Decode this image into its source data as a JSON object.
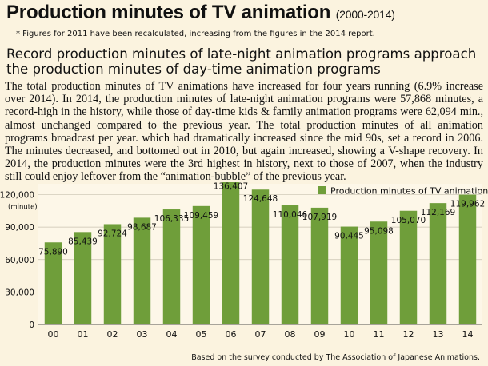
{
  "header": {
    "title": "Production minutes of TV animation",
    "title_years": "(2000-2014)",
    "note": "* Figures for 2011 have been recalculated, increasing from the figures in the 2014 report."
  },
  "article": {
    "subtitle": "Record production minutes of late-night animation programs approach the production minutes of day-time animation programs",
    "body": "The total production minutes of TV animations have increased for four years running (6.9% increase over 2014). In 2014, the production minutes of late-night animation programs were 57,868 minutes, a record-high in the history, while those of day-time kids & family animation programs were 62,094 min., almost unchanged compared to the previous year.  The total production minutes of all animation programs broadcast per year. which had dramatically increased since the mid 90s, set a record in 2006.  The minutes decreased, and bottomed out in 2010, but again increased, showing a V-shape recovery.  In 2014, the production minutes were the 3rd highest in history, next to those of 2007, when the industry still could enjoy leftover from the “animation-bubble” of the previous year."
  },
  "chart_data": {
    "type": "bar",
    "categories": [
      "00",
      "01",
      "02",
      "03",
      "04",
      "05",
      "06",
      "07",
      "08",
      "09",
      "10",
      "11",
      "12",
      "13",
      "14"
    ],
    "values": [
      75890,
      85439,
      92724,
      98687,
      106335,
      109459,
      136407,
      124648,
      110046,
      107919,
      90445,
      95098,
      105070,
      112169,
      119962
    ],
    "value_labels": [
      "75,890",
      "85,439",
      "92,724",
      "98,687",
      "106,335",
      "109,459",
      "136,407",
      "124,648",
      "110,046",
      "107,919",
      "90,445",
      "95,098",
      "105,070",
      "112,169",
      "119,962"
    ],
    "series_name": "Production minutes of TV animations",
    "ylabel": "(minute)",
    "ylim": [
      0,
      130000
    ],
    "yticks": [
      0,
      30000,
      60000,
      90000,
      120000
    ],
    "ytick_labels": [
      "0",
      "30,000",
      "60,000",
      "90,000",
      "120,000"
    ],
    "grid": true,
    "legend": "top-right",
    "bar_color": "#6f9e3a"
  },
  "footer": {
    "source": "Based on the survey conducted by The Association of Japanese Animations."
  }
}
